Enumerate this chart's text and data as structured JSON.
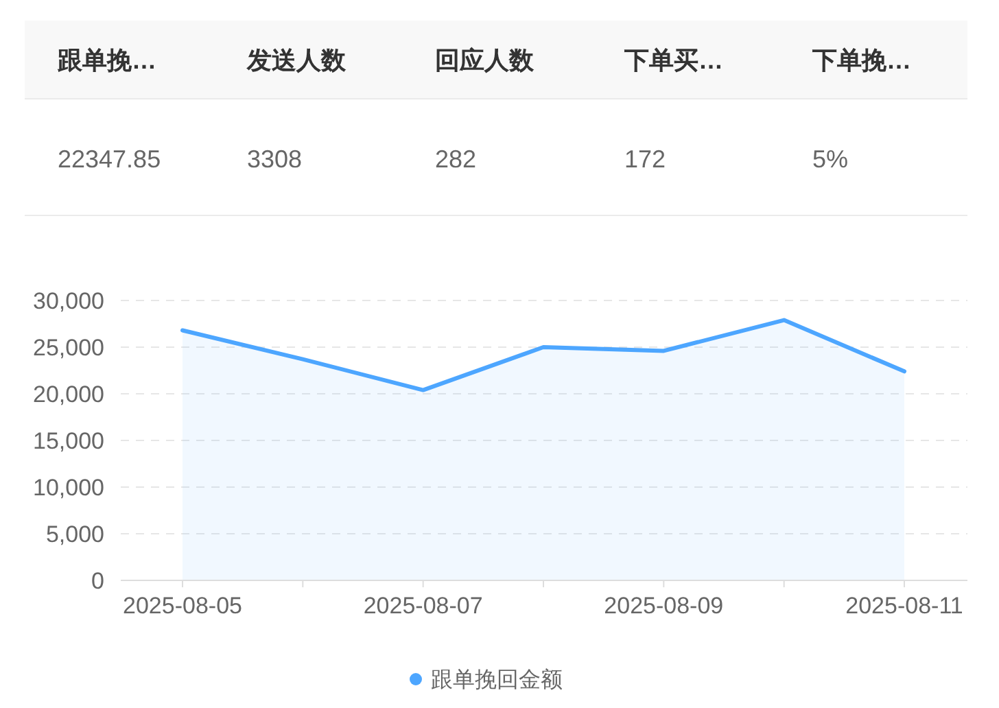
{
  "chart_data": [
    {
      "type": "other",
      "categories": [
        "跟单挽…",
        "发送人数",
        "回应人数",
        "下单买…",
        "下单挽…"
      ],
      "value_labels": [
        "22347.85",
        "3308",
        "282",
        "172",
        "5%"
      ]
    },
    {
      "type": "area",
      "categories": [
        "2025-08-05",
        null,
        "2025-08-07",
        null,
        "2025-08-09",
        null,
        "2025-08-11"
      ],
      "series": [
        {
          "name": "跟单挽回金额",
          "color": "#4da6ff",
          "values": [
            26800,
            23700,
            20400,
            25000,
            24600,
            27900,
            22400
          ]
        }
      ],
      "ylim": [
        0,
        30000
      ],
      "yticks": [
        {
          "value": 0,
          "label": "0"
        },
        {
          "value": 5000,
          "label": "5,000"
        },
        {
          "value": 10000,
          "label": "10,000"
        },
        {
          "value": 15000,
          "label": "15,000"
        },
        {
          "value": 20000,
          "label": "20,000"
        },
        {
          "value": 25000,
          "label": "25,000"
        },
        {
          "value": 30000,
          "label": "30,000"
        }
      ],
      "grid": "y",
      "legend": "bottom"
    }
  ]
}
